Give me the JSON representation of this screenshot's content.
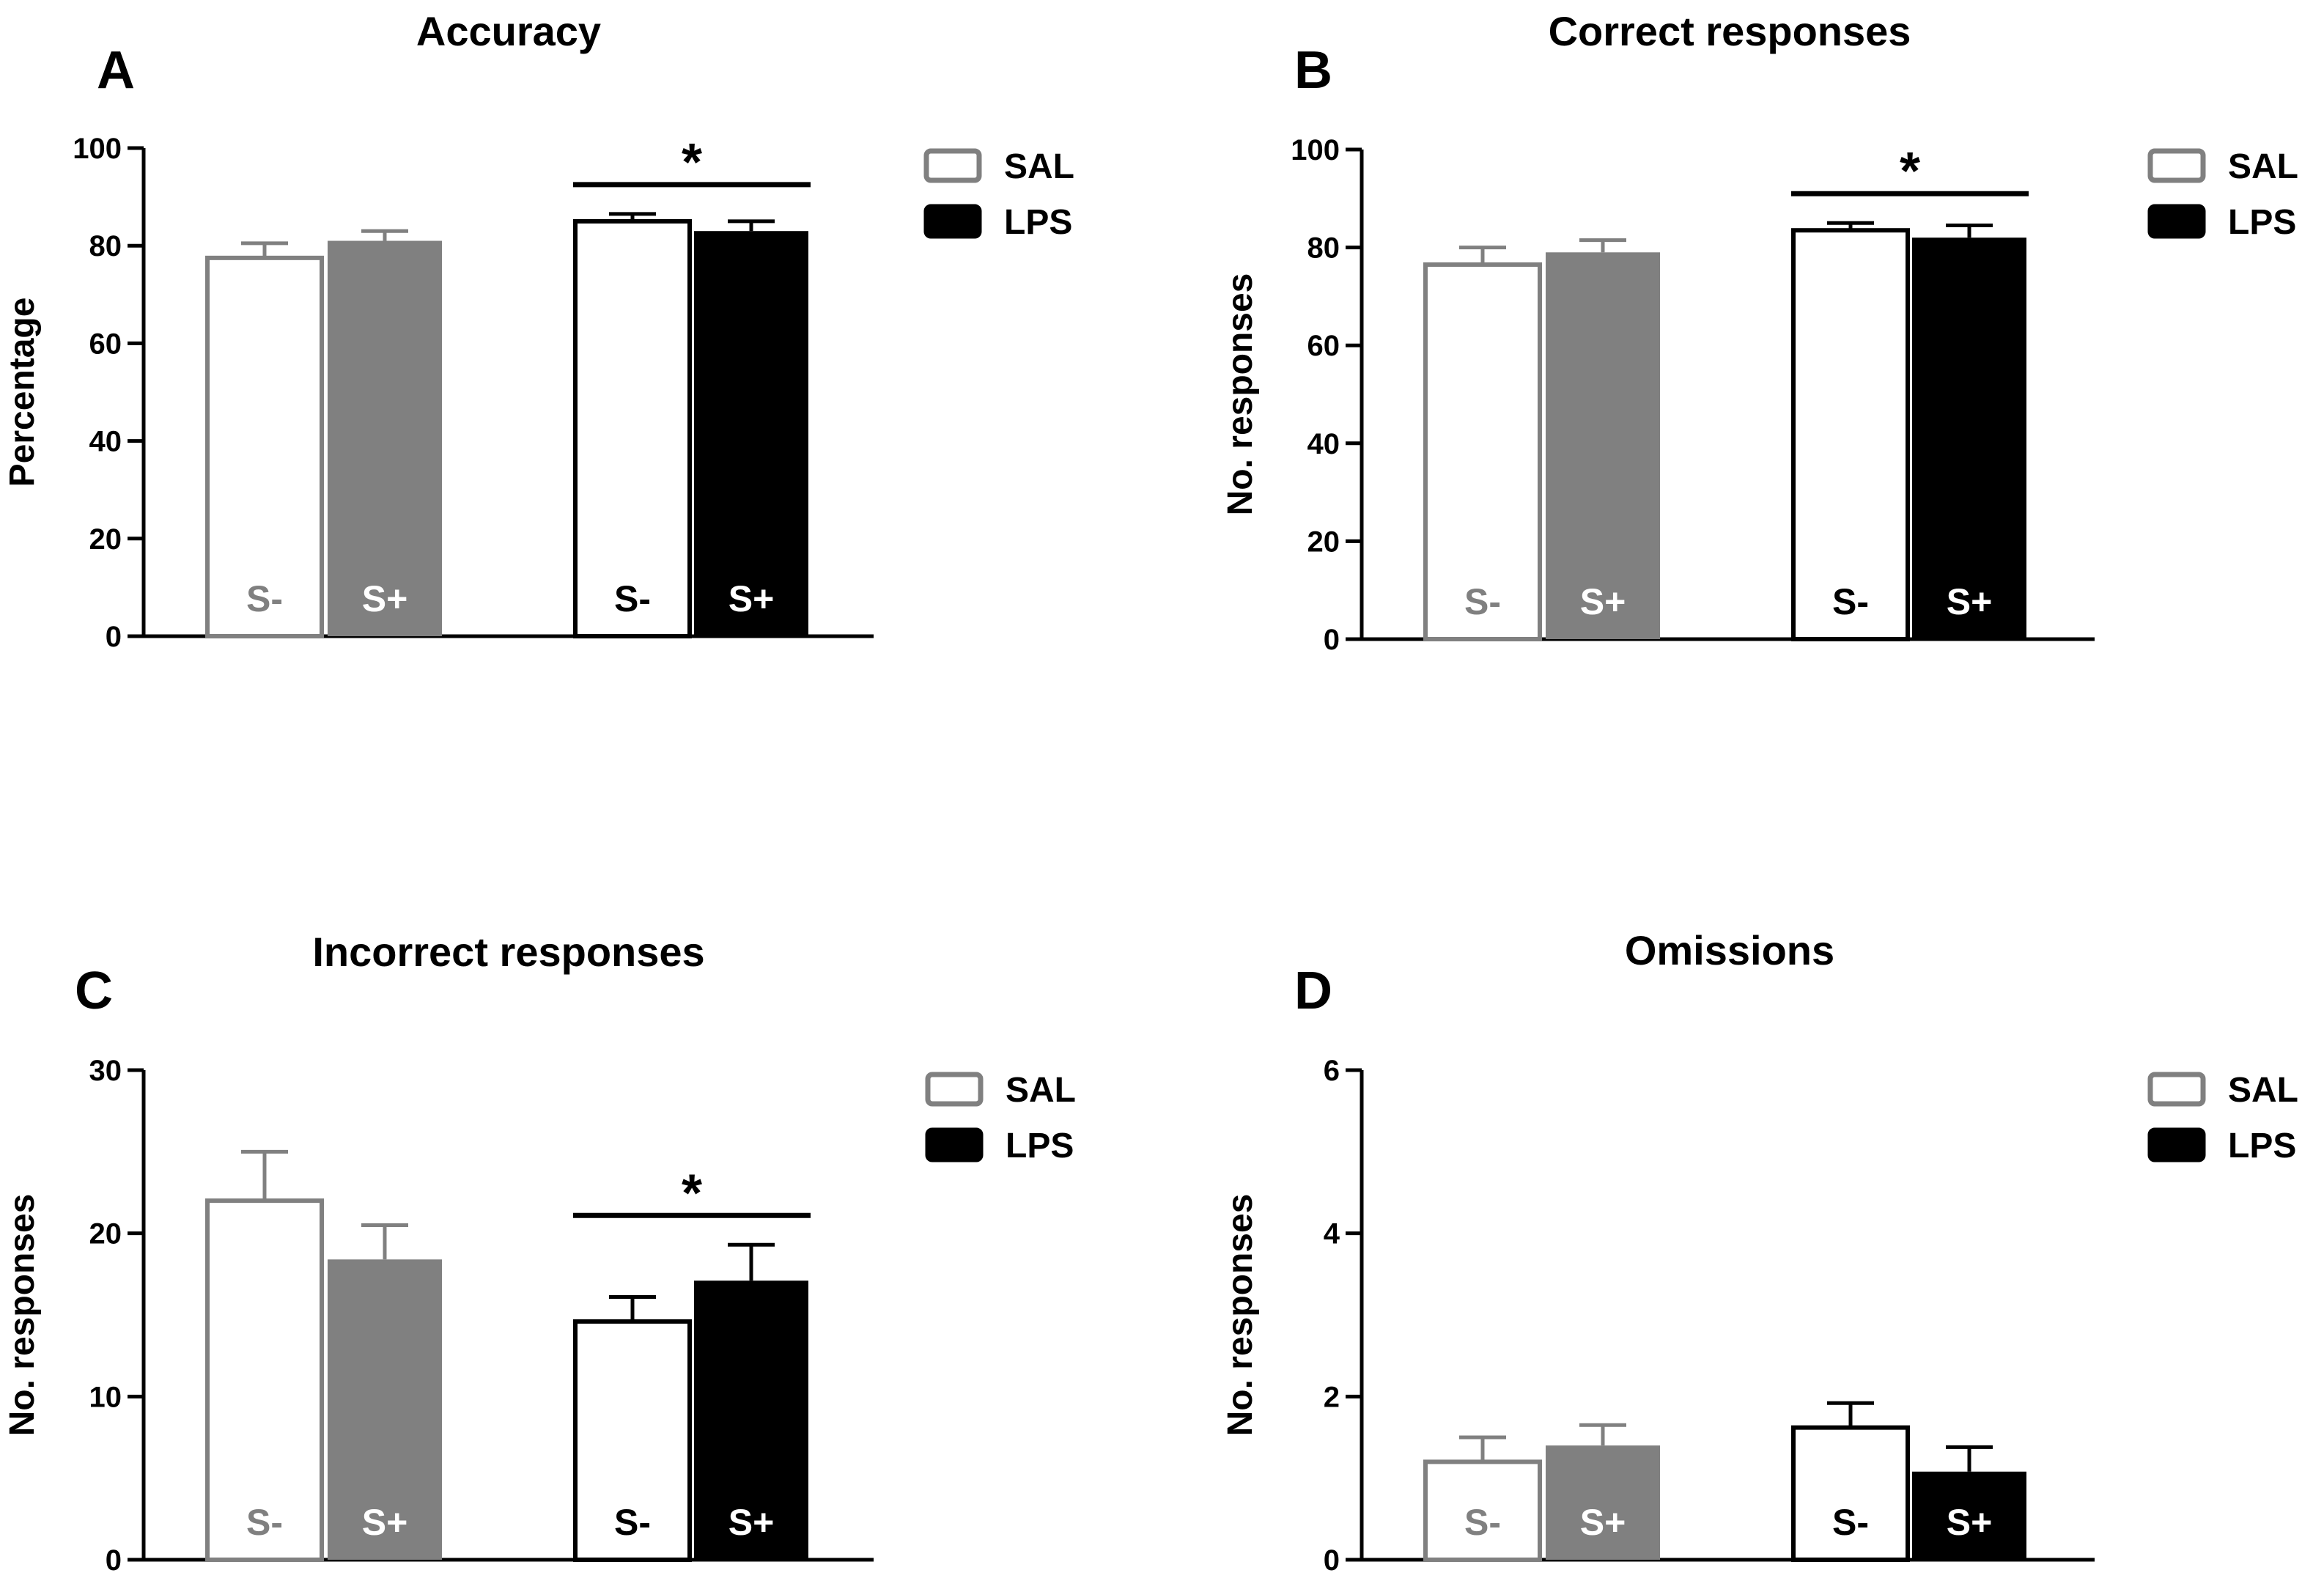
{
  "colors": {
    "sal": "#808080",
    "lps": "#000000",
    "background": "#ffffff",
    "axis": "#000000"
  },
  "legend": [
    {
      "label": "SAL",
      "style": "hollow",
      "color": "#808080"
    },
    {
      "label": "LPS",
      "style": "filled",
      "color": "#000000"
    }
  ],
  "chart_data": [
    {
      "panel": "A",
      "type": "bar",
      "title": "Accuracy",
      "xlabel": "",
      "ylabel": "Percentage",
      "ylim": [
        0,
        100
      ],
      "yticks": [
        0,
        20,
        40,
        60,
        80,
        100
      ],
      "bars": [
        {
          "group": "SAL",
          "stimulus": "S-",
          "label": "S-",
          "value": 77.5,
          "error": 3.0,
          "fill": "hollow",
          "color": "#808080"
        },
        {
          "group": "SAL",
          "stimulus": "S+",
          "label": "S+",
          "value": 81,
          "error": 2.0,
          "fill": "filled",
          "color": "#808080"
        },
        {
          "group": "LPS",
          "stimulus": "S-",
          "label": "S-",
          "value": 85,
          "error": 1.5,
          "fill": "hollow",
          "color": "#000000"
        },
        {
          "group": "LPS",
          "stimulus": "S+",
          "label": "S+",
          "value": 83,
          "error": 2.0,
          "fill": "filled",
          "color": "#000000"
        }
      ],
      "significance": {
        "marker": "*",
        "group": "LPS"
      }
    },
    {
      "panel": "B",
      "type": "bar",
      "title": "Correct responses",
      "xlabel": "",
      "ylabel": "No. responses",
      "ylim": [
        0,
        100
      ],
      "yticks": [
        0,
        20,
        40,
        60,
        80,
        100
      ],
      "bars": [
        {
          "group": "SAL",
          "stimulus": "S-",
          "label": "S-",
          "value": 76.5,
          "error": 3.5,
          "fill": "hollow",
          "color": "#808080"
        },
        {
          "group": "SAL",
          "stimulus": "S+",
          "label": "S+",
          "value": 79,
          "error": 2.5,
          "fill": "filled",
          "color": "#808080"
        },
        {
          "group": "LPS",
          "stimulus": "S-",
          "label": "S-",
          "value": 83.5,
          "error": 1.5,
          "fill": "hollow",
          "color": "#000000"
        },
        {
          "group": "LPS",
          "stimulus": "S+",
          "label": "S+",
          "value": 82,
          "error": 2.5,
          "fill": "filled",
          "color": "#000000"
        }
      ],
      "significance": {
        "marker": "*",
        "group": "LPS"
      }
    },
    {
      "panel": "C",
      "type": "bar",
      "title": "Incorrect responses",
      "xlabel": "",
      "ylabel": "No. responses",
      "ylim": [
        0,
        30
      ],
      "yticks": [
        0,
        10,
        20,
        30
      ],
      "bars": [
        {
          "group": "SAL",
          "stimulus": "S-",
          "label": "S-",
          "value": 22,
          "error": 3.0,
          "fill": "hollow",
          "color": "#808080"
        },
        {
          "group": "SAL",
          "stimulus": "S+",
          "label": "S+",
          "value": 18.4,
          "error": 2.1,
          "fill": "filled",
          "color": "#808080"
        },
        {
          "group": "LPS",
          "stimulus": "S-",
          "label": "S-",
          "value": 14.6,
          "error": 1.5,
          "fill": "hollow",
          "color": "#000000"
        },
        {
          "group": "LPS",
          "stimulus": "S+",
          "label": "S+",
          "value": 17.1,
          "error": 2.2,
          "fill": "filled",
          "color": "#000000"
        }
      ],
      "significance": {
        "marker": "*",
        "group": "LPS"
      }
    },
    {
      "panel": "D",
      "type": "bar",
      "title": "Omissions",
      "xlabel": "",
      "ylabel": "No. responses",
      "ylim": [
        0,
        6
      ],
      "yticks": [
        0,
        2,
        4,
        6
      ],
      "bars": [
        {
          "group": "SAL",
          "stimulus": "S-",
          "label": "S-",
          "value": 1.2,
          "error": 0.3,
          "fill": "hollow",
          "color": "#808080"
        },
        {
          "group": "SAL",
          "stimulus": "S+",
          "label": "S+",
          "value": 1.4,
          "error": 0.25,
          "fill": "filled",
          "color": "#808080"
        },
        {
          "group": "LPS",
          "stimulus": "S-",
          "label": "S-",
          "value": 1.62,
          "error": 0.3,
          "fill": "hollow",
          "color": "#000000"
        },
        {
          "group": "LPS",
          "stimulus": "S+",
          "label": "S+",
          "value": 1.08,
          "error": 0.3,
          "fill": "filled",
          "color": "#000000"
        }
      ],
      "significance": null
    }
  ]
}
